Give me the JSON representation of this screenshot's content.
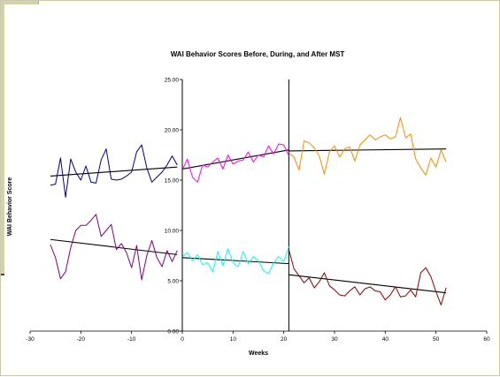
{
  "chart_data": {
    "type": "line",
    "title": "WAI Behavior Scores Before, During, and After MST",
    "xlabel": "Weeks",
    "ylabel": "WAI Behavior Score",
    "xlim": [
      -30,
      60
    ],
    "ylim": [
      0,
      25
    ],
    "xticks": [
      "-30",
      "-20",
      "-10",
      "0",
      "10",
      "20",
      "30",
      "40",
      "50",
      "60"
    ],
    "yticks": [
      "0.00",
      "5.00",
      "10.00",
      "15.00",
      "20.00",
      "25.00"
    ],
    "grid": false,
    "legend": "none",
    "phase_boundaries": [
      0,
      21
    ],
    "series": [
      {
        "color": "#00008b",
        "x": [
          -26,
          -25,
          -24,
          -23,
          -22,
          -21,
          -20,
          -19,
          -18,
          -17,
          -16,
          -15,
          -14,
          -13,
          -12,
          -11,
          -10,
          -9,
          -8,
          -7,
          -6,
          -5,
          -4,
          -3,
          -2,
          -1
        ],
        "y": [
          14.5,
          14.6,
          17.2,
          13.3,
          17.1,
          15.8,
          15.0,
          16.4,
          14.8,
          14.7,
          17.0,
          18.1,
          15.1,
          15.0,
          15.1,
          15.4,
          15.8,
          17.8,
          18.5,
          16.2,
          14.8,
          15.3,
          15.8,
          16.5,
          17.4,
          16.5
        ]
      },
      {
        "color": "#ff00ff",
        "x": [
          0,
          1,
          2,
          3,
          4,
          5,
          6,
          7,
          8,
          9,
          10,
          11,
          12,
          13,
          14,
          15,
          16,
          17,
          18,
          19,
          20,
          21
        ],
        "y": [
          16.0,
          17.1,
          15.3,
          14.8,
          16.5,
          16.3,
          16.8,
          17.2,
          16.1,
          17.5,
          16.6,
          16.9,
          17.0,
          17.8,
          16.8,
          17.5,
          17.3,
          18.4,
          17.6,
          18.6,
          18.5,
          17.4
        ]
      },
      {
        "color": "#ff8c00",
        "x": [
          21,
          22,
          23,
          24,
          25,
          26,
          27,
          28,
          29,
          30,
          31,
          32,
          33,
          34,
          35,
          36,
          37,
          38,
          39,
          40,
          41,
          42,
          43,
          44,
          45,
          46,
          47,
          48,
          49,
          50,
          51,
          52
        ],
        "y": [
          17.7,
          17.3,
          16.0,
          18.9,
          18.7,
          18.2,
          17.4,
          15.6,
          17.8,
          18.4,
          17.3,
          18.1,
          18.3,
          16.9,
          18.5,
          19.0,
          19.5,
          19.0,
          19.3,
          19.5,
          19.1,
          19.3,
          21.2,
          19.2,
          19.6,
          17.1,
          16.2,
          15.5,
          17.2,
          16.3,
          18.0,
          16.8
        ]
      },
      {
        "color": "#800080",
        "x": [
          -26,
          -25,
          -24,
          -23,
          -22,
          -21,
          -20,
          -19,
          -18,
          -17,
          -16,
          -15,
          -14,
          -13,
          -12,
          -11,
          -10,
          -9,
          -8,
          -7,
          -6,
          -5,
          -4,
          -3,
          -2,
          -1
        ],
        "y": [
          8.6,
          7.3,
          5.2,
          5.9,
          8.3,
          10.0,
          10.5,
          10.5,
          11.0,
          11.6,
          9.4,
          10.0,
          10.6,
          8.1,
          8.7,
          7.8,
          6.3,
          8.5,
          5.1,
          7.5,
          9.0,
          7.3,
          6.4,
          8.0,
          6.9,
          8.0
        ]
      },
      {
        "color": "#00ffff",
        "x": [
          0,
          1,
          2,
          3,
          4,
          5,
          6,
          7,
          8,
          9,
          10,
          11,
          12,
          13,
          14,
          15,
          16,
          17,
          18,
          19,
          20,
          21
        ],
        "y": [
          7.4,
          7.8,
          7.0,
          7.6,
          6.6,
          6.8,
          5.9,
          7.9,
          6.5,
          8.2,
          6.8,
          6.4,
          7.9,
          6.7,
          7.4,
          7.0,
          6.0,
          5.7,
          6.8,
          7.4,
          6.9,
          8.4
        ]
      },
      {
        "color": "#8b0000",
        "x": [
          21,
          22,
          23,
          24,
          25,
          26,
          27,
          28,
          29,
          30,
          31,
          32,
          33,
          34,
          35,
          36,
          37,
          38,
          39,
          40,
          41,
          42,
          43,
          44,
          45,
          46,
          47,
          48,
          49,
          50,
          51,
          52
        ],
        "y": [
          8.1,
          6.2,
          5.5,
          4.8,
          5.3,
          4.3,
          4.9,
          5.8,
          4.5,
          4.1,
          3.6,
          3.5,
          4.0,
          4.4,
          3.6,
          4.2,
          4.4,
          4.0,
          3.9,
          3.1,
          3.6,
          4.4,
          3.4,
          3.5,
          4.1,
          3.4,
          5.8,
          6.3,
          5.4,
          3.9,
          2.6,
          4.3
        ]
      }
    ],
    "trendlines": [
      {
        "color": "#000000",
        "x": [
          -26,
          -1
        ],
        "y": [
          15.4,
          16.3
        ]
      },
      {
        "color": "#000000",
        "x": [
          0,
          21
        ],
        "y": [
          16.1,
          18.0
        ]
      },
      {
        "color": "#000000",
        "x": [
          21,
          52
        ],
        "y": [
          17.9,
          18.1
        ]
      },
      {
        "color": "#000000",
        "x": [
          -26,
          -1
        ],
        "y": [
          9.1,
          7.6
        ]
      },
      {
        "color": "#000000",
        "x": [
          0,
          21
        ],
        "y": [
          7.3,
          6.7
        ]
      },
      {
        "color": "#000000",
        "x": [
          21,
          52
        ],
        "y": [
          5.6,
          3.8
        ]
      }
    ]
  }
}
